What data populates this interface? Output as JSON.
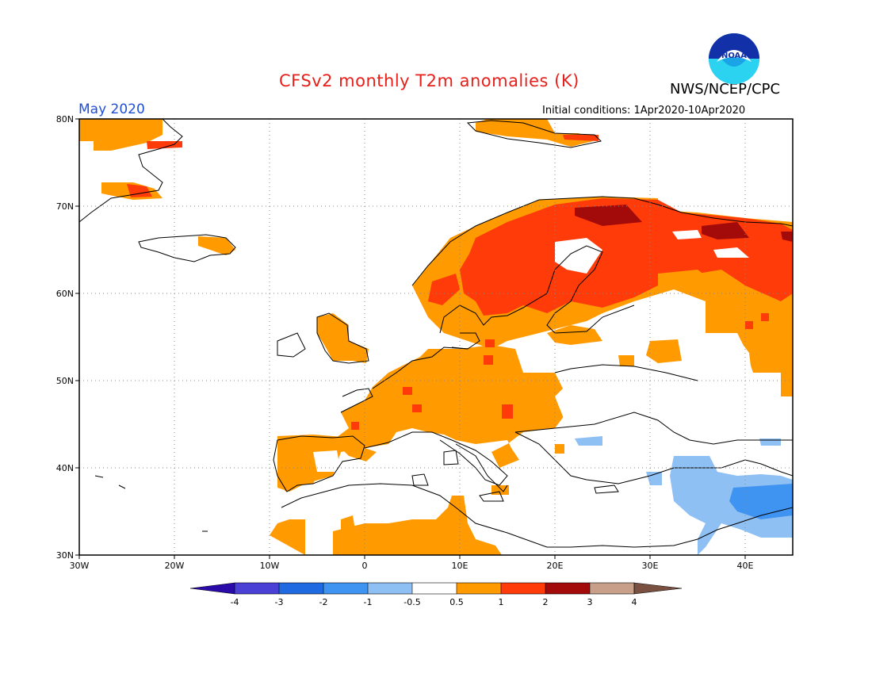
{
  "header": {
    "title": "CFSv2 monthly T2m anomalies (K)",
    "agency": "NWS/NCEP/CPC",
    "month": "May 2020",
    "initial_conditions": "Initial conditions: 1Apr2020-10Apr2020",
    "logo_text": "NOAA"
  },
  "colors": {
    "title": "#e8201b",
    "month": "#1f4fd6",
    "frame": "#000000"
  },
  "map": {
    "lon_range": [
      -30,
      45
    ],
    "lat_range": [
      30,
      80
    ],
    "lat_ticks": [
      "30N",
      "40N",
      "50N",
      "60N",
      "70N",
      "80N"
    ],
    "lon_ticks": [
      "30W",
      "20W",
      "10W",
      "0",
      "10E",
      "20E",
      "30E",
      "40E"
    ],
    "grid": "dotted"
  },
  "legend": {
    "colors": [
      "#2a0aa8",
      "#4a40d6",
      "#1f6ae0",
      "#3e94f0",
      "#8fc0f4",
      "#ffffff",
      "#ff9a00",
      "#ff3b0a",
      "#a30a0a",
      "#c8a08a",
      "#7a5040"
    ],
    "labels": [
      "-4",
      "-3",
      "-2",
      "-1",
      "-0.5",
      "0.5",
      "1",
      "2",
      "3",
      "4"
    ]
  }
}
